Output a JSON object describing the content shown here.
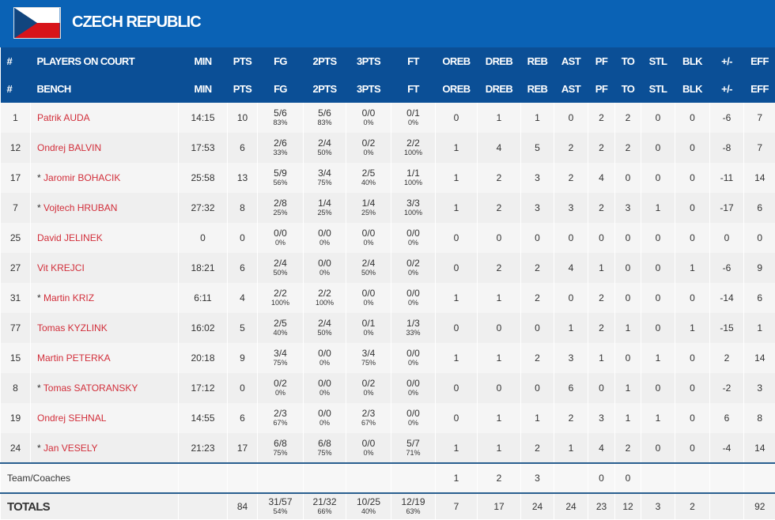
{
  "team": {
    "name": "CZECH REPUBLIC",
    "flag_colors": [
      "#ffffff",
      "#d7141a",
      "#11457e"
    ]
  },
  "headers": {
    "on_court": [
      "#",
      "PLAYERS ON COURT",
      "MIN",
      "PTS",
      "FG",
      "2PTS",
      "3PTS",
      "FT",
      "OREB",
      "DREB",
      "REB",
      "AST",
      "PF",
      "TO",
      "STL",
      "BLK",
      "+/-",
      "EFF"
    ],
    "bench": [
      "#",
      "BENCH",
      "MIN",
      "PTS",
      "FG",
      "2PTS",
      "3PTS",
      "FT",
      "OREB",
      "DREB",
      "REB",
      "AST",
      "PF",
      "TO",
      "STL",
      "BLK",
      "+/-",
      "EFF"
    ]
  },
  "players": [
    {
      "no": "1",
      "name": "Patrik AUDA",
      "starter": false,
      "min": "14:15",
      "pts": "10",
      "fg": [
        "5/6",
        "83%"
      ],
      "p2": [
        "5/6",
        "83%"
      ],
      "p3": [
        "0/0",
        "0%"
      ],
      "ft": [
        "0/1",
        "0%"
      ],
      "oreb": "0",
      "dreb": "1",
      "reb": "1",
      "ast": "0",
      "pf": "2",
      "to": "2",
      "stl": "0",
      "blk": "0",
      "pm": "-6",
      "eff": "7"
    },
    {
      "no": "12",
      "name": "Ondrej BALVIN",
      "starter": false,
      "min": "17:53",
      "pts": "6",
      "fg": [
        "2/6",
        "33%"
      ],
      "p2": [
        "2/4",
        "50%"
      ],
      "p3": [
        "0/2",
        "0%"
      ],
      "ft": [
        "2/2",
        "100%"
      ],
      "oreb": "1",
      "dreb": "4",
      "reb": "5",
      "ast": "2",
      "pf": "2",
      "to": "2",
      "stl": "0",
      "blk": "0",
      "pm": "-8",
      "eff": "7"
    },
    {
      "no": "17",
      "name": "Jaromir BOHACIK",
      "starter": true,
      "min": "25:58",
      "pts": "13",
      "fg": [
        "5/9",
        "56%"
      ],
      "p2": [
        "3/4",
        "75%"
      ],
      "p3": [
        "2/5",
        "40%"
      ],
      "ft": [
        "1/1",
        "100%"
      ],
      "oreb": "1",
      "dreb": "2",
      "reb": "3",
      "ast": "2",
      "pf": "4",
      "to": "0",
      "stl": "0",
      "blk": "0",
      "pm": "-11",
      "eff": "14"
    },
    {
      "no": "7",
      "name": "Vojtech HRUBAN",
      "starter": true,
      "min": "27:32",
      "pts": "8",
      "fg": [
        "2/8",
        "25%"
      ],
      "p2": [
        "1/4",
        "25%"
      ],
      "p3": [
        "1/4",
        "25%"
      ],
      "ft": [
        "3/3",
        "100%"
      ],
      "oreb": "1",
      "dreb": "2",
      "reb": "3",
      "ast": "3",
      "pf": "2",
      "to": "3",
      "stl": "1",
      "blk": "0",
      "pm": "-17",
      "eff": "6"
    },
    {
      "no": "25",
      "name": "David JELINEK",
      "starter": false,
      "min": "0",
      "pts": "0",
      "fg": [
        "0/0",
        "0%"
      ],
      "p2": [
        "0/0",
        "0%"
      ],
      "p3": [
        "0/0",
        "0%"
      ],
      "ft": [
        "0/0",
        "0%"
      ],
      "oreb": "0",
      "dreb": "0",
      "reb": "0",
      "ast": "0",
      "pf": "0",
      "to": "0",
      "stl": "0",
      "blk": "0",
      "pm": "0",
      "eff": "0"
    },
    {
      "no": "27",
      "name": "Vit KREJCI",
      "starter": false,
      "min": "18:21",
      "pts": "6",
      "fg": [
        "2/4",
        "50%"
      ],
      "p2": [
        "0/0",
        "0%"
      ],
      "p3": [
        "2/4",
        "50%"
      ],
      "ft": [
        "0/2",
        "0%"
      ],
      "oreb": "0",
      "dreb": "2",
      "reb": "2",
      "ast": "4",
      "pf": "1",
      "to": "0",
      "stl": "0",
      "blk": "1",
      "pm": "-6",
      "eff": "9"
    },
    {
      "no": "31",
      "name": "Martin KRIZ",
      "starter": true,
      "min": "6:11",
      "pts": "4",
      "fg": [
        "2/2",
        "100%"
      ],
      "p2": [
        "2/2",
        "100%"
      ],
      "p3": [
        "0/0",
        "0%"
      ],
      "ft": [
        "0/0",
        "0%"
      ],
      "oreb": "1",
      "dreb": "1",
      "reb": "2",
      "ast": "0",
      "pf": "2",
      "to": "0",
      "stl": "0",
      "blk": "0",
      "pm": "-14",
      "eff": "6"
    },
    {
      "no": "77",
      "name": "Tomas KYZLINK",
      "starter": false,
      "min": "16:02",
      "pts": "5",
      "fg": [
        "2/5",
        "40%"
      ],
      "p2": [
        "2/4",
        "50%"
      ],
      "p3": [
        "0/1",
        "0%"
      ],
      "ft": [
        "1/3",
        "33%"
      ],
      "oreb": "0",
      "dreb": "0",
      "reb": "0",
      "ast": "1",
      "pf": "2",
      "to": "1",
      "stl": "0",
      "blk": "1",
      "pm": "-15",
      "eff": "1"
    },
    {
      "no": "15",
      "name": "Martin PETERKA",
      "starter": false,
      "min": "20:18",
      "pts": "9",
      "fg": [
        "3/4",
        "75%"
      ],
      "p2": [
        "0/0",
        "0%"
      ],
      "p3": [
        "3/4",
        "75%"
      ],
      "ft": [
        "0/0",
        "0%"
      ],
      "oreb": "1",
      "dreb": "1",
      "reb": "2",
      "ast": "3",
      "pf": "1",
      "to": "0",
      "stl": "1",
      "blk": "0",
      "pm": "2",
      "eff": "14"
    },
    {
      "no": "8",
      "name": "Tomas SATORANSKY",
      "starter": true,
      "min": "17:12",
      "pts": "0",
      "fg": [
        "0/2",
        "0%"
      ],
      "p2": [
        "0/0",
        "0%"
      ],
      "p3": [
        "0/2",
        "0%"
      ],
      "ft": [
        "0/0",
        "0%"
      ],
      "oreb": "0",
      "dreb": "0",
      "reb": "0",
      "ast": "6",
      "pf": "0",
      "to": "1",
      "stl": "0",
      "blk": "0",
      "pm": "-2",
      "eff": "3"
    },
    {
      "no": "19",
      "name": "Ondrej SEHNAL",
      "starter": false,
      "min": "14:55",
      "pts": "6",
      "fg": [
        "2/3",
        "67%"
      ],
      "p2": [
        "0/0",
        "0%"
      ],
      "p3": [
        "2/3",
        "67%"
      ],
      "ft": [
        "0/0",
        "0%"
      ],
      "oreb": "0",
      "dreb": "1",
      "reb": "1",
      "ast": "2",
      "pf": "3",
      "to": "1",
      "stl": "1",
      "blk": "0",
      "pm": "6",
      "eff": "8"
    },
    {
      "no": "24",
      "name": "Jan VESELY",
      "starter": true,
      "min": "21:23",
      "pts": "17",
      "fg": [
        "6/8",
        "75%"
      ],
      "p2": [
        "6/8",
        "75%"
      ],
      "p3": [
        "0/0",
        "0%"
      ],
      "ft": [
        "5/7",
        "71%"
      ],
      "oreb": "1",
      "dreb": "1",
      "reb": "2",
      "ast": "1",
      "pf": "4",
      "to": "2",
      "stl": "0",
      "blk": "0",
      "pm": "-4",
      "eff": "14"
    }
  ],
  "team_row": {
    "label": "Team/Coaches",
    "oreb": "1",
    "dreb": "2",
    "reb": "3",
    "ast": "",
    "pf": "0",
    "to": "0"
  },
  "totals": {
    "label": "TOTALS",
    "pts": "84",
    "fg": [
      "31/57",
      "54%"
    ],
    "p2": [
      "21/32",
      "66%"
    ],
    "p3": [
      "10/25",
      "40%"
    ],
    "ft": [
      "12/19",
      "63%"
    ],
    "oreb": "7",
    "dreb": "17",
    "reb": "24",
    "ast": "24",
    "pf": "23",
    "to": "12",
    "stl": "3",
    "blk": "2",
    "pm": "",
    "eff": "92"
  }
}
